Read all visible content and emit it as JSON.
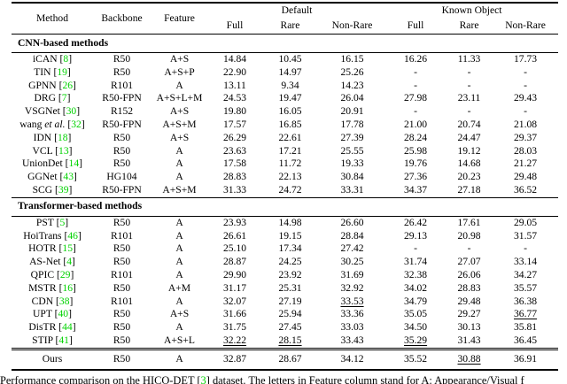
{
  "colors": {
    "citation_green": "#00d200"
  },
  "header": {
    "method": "Method",
    "backbone": "Backbone",
    "feature": "Feature",
    "group_default": "Default",
    "group_known_object": "Known Object",
    "sub_full": "Full",
    "sub_rare": "Rare",
    "sub_nonrare": "Non-Rare"
  },
  "sections": [
    {
      "title": "CNN-based methods",
      "rows": [
        {
          "name": "iCAN",
          "cite": "8",
          "backbone": "R50",
          "feature": "A+S",
          "values": [
            "14.84",
            "10.45",
            "16.15",
            "16.26",
            "11.33",
            "17.73"
          ]
        },
        {
          "name": "TIN",
          "cite": "19",
          "backbone": "R50",
          "feature": "A+S+P",
          "values": [
            "22.90",
            "14.97",
            "25.26",
            "-",
            "-",
            "-"
          ]
        },
        {
          "name": "GPNN",
          "cite": "26",
          "backbone": "R101",
          "feature": "A",
          "values": [
            "13.11",
            "9.34",
            "14.23",
            "-",
            "-",
            "-"
          ]
        },
        {
          "name": "DRG",
          "cite": "7",
          "backbone": "R50-FPN",
          "feature": "A+S+L+M",
          "values": [
            "24.53",
            "19.47",
            "26.04",
            "27.98",
            "23.11",
            "29.43"
          ]
        },
        {
          "name": "VSGNet",
          "cite": "30",
          "backbone": "R152",
          "feature": "A+S",
          "values": [
            "19.80",
            "16.05",
            "20.91",
            "-",
            "-",
            "-"
          ]
        },
        {
          "name": "wang",
          "name_italic": "et al.",
          "cite": "32",
          "backbone": "R50-FPN",
          "feature": "A+S+M",
          "values": [
            "17.57",
            "16.85",
            "17.78",
            "21.00",
            "20.74",
            "21.08"
          ]
        },
        {
          "name": "IDN",
          "cite": "18",
          "backbone": "R50",
          "feature": "A+S",
          "values": [
            "26.29",
            "22.61",
            "27.39",
            "28.24",
            "24.47",
            "29.37"
          ]
        },
        {
          "name": "VCL",
          "cite": "13",
          "backbone": "R50",
          "feature": "A",
          "values": [
            "23.63",
            "17.21",
            "25.55",
            "25.98",
            "19.12",
            "28.03"
          ]
        },
        {
          "name": "UnionDet",
          "cite": "14",
          "backbone": "R50",
          "feature": "A",
          "values": [
            "17.58",
            "11.72",
            "19.33",
            "19.76",
            "14.68",
            "21.27"
          ]
        },
        {
          "name": "GGNet",
          "cite": "43",
          "backbone": "HG104",
          "feature": "A",
          "values": [
            "28.83",
            "22.13",
            "30.84",
            "27.36",
            "20.23",
            "29.48"
          ]
        },
        {
          "name": "SCG",
          "cite": "39",
          "backbone": "R50-FPN",
          "feature": "A+S+M",
          "values": [
            "31.33",
            "24.72",
            "33.31",
            "34.37",
            "27.18",
            "36.52"
          ]
        }
      ]
    },
    {
      "title": "Transformer-based methods",
      "rows": [
        {
          "name": "PST",
          "cite": "5",
          "backbone": "R50",
          "feature": "A",
          "values": [
            "23.93",
            "14.98",
            "26.60",
            "26.42",
            "17.61",
            "29.05"
          ]
        },
        {
          "name": "HoiTrans",
          "cite": "46",
          "backbone": "R101",
          "feature": "A",
          "values": [
            "26.61",
            "19.15",
            "28.84",
            "29.13",
            "20.98",
            "31.57"
          ]
        },
        {
          "name": "HOTR",
          "cite": "15",
          "backbone": "R50",
          "feature": "A",
          "values": [
            "25.10",
            "17.34",
            "27.42",
            "-",
            "-",
            "-"
          ]
        },
        {
          "name": "AS-Net",
          "cite": "4",
          "backbone": "R50",
          "feature": "A",
          "values": [
            "28.87",
            "24.25",
            "30.25",
            "31.74",
            "27.07",
            "33.14"
          ]
        },
        {
          "name": "QPIC",
          "cite": "29",
          "backbone": "R101",
          "feature": "A",
          "values": [
            "29.90",
            "23.92",
            "31.69",
            "32.38",
            "26.06",
            "34.27"
          ]
        },
        {
          "name": "MSTR",
          "cite": "16",
          "backbone": "R50",
          "feature": "A+M",
          "values": [
            "31.17",
            "25.31",
            "32.92",
            "34.02",
            "28.83",
            "35.57"
          ]
        },
        {
          "name": "CDN",
          "cite": "38",
          "backbone": "R101",
          "feature": "A",
          "values": [
            "32.07",
            "27.19",
            "33.53",
            "34.79",
            "29.48",
            "36.38"
          ],
          "styles": [
            "",
            "",
            "u",
            "",
            "",
            ""
          ]
        },
        {
          "name": "UPT",
          "cite": "40",
          "backbone": "R50",
          "feature": "A+S",
          "values": [
            "31.66",
            "25.94",
            "33.36",
            "35.05",
            "29.27",
            "36.77"
          ],
          "styles": [
            "",
            "",
            "",
            "",
            "",
            "u"
          ]
        },
        {
          "name": "DisTR",
          "cite": "44",
          "backbone": "R50",
          "feature": "A",
          "values": [
            "31.75",
            "27.45",
            "33.03",
            "34.50",
            "30.13",
            "35.81"
          ]
        },
        {
          "name": "STIP",
          "cite": "41",
          "backbone": "R50",
          "feature": "A+S+L",
          "values": [
            "32.22",
            "28.15",
            "33.43",
            "35.29",
            "31.43",
            "36.45"
          ],
          "styles": [
            "u",
            "u",
            "",
            "u",
            "b",
            ""
          ]
        }
      ]
    }
  ],
  "ours": {
    "name": "Ours",
    "backbone": "R50",
    "feature": "A",
    "values": [
      "32.87",
      "28.67",
      "34.12",
      "35.52",
      "30.88",
      "36.91"
    ],
    "styles": [
      "b",
      "b",
      "b",
      "b",
      "u",
      "b"
    ]
  },
  "caption": {
    "pre": "Performance comparison on the HICO-DET [",
    "cite": "3",
    "post": "] dataset. The letters in Feature column stand for A: Appearance/Visual f"
  }
}
